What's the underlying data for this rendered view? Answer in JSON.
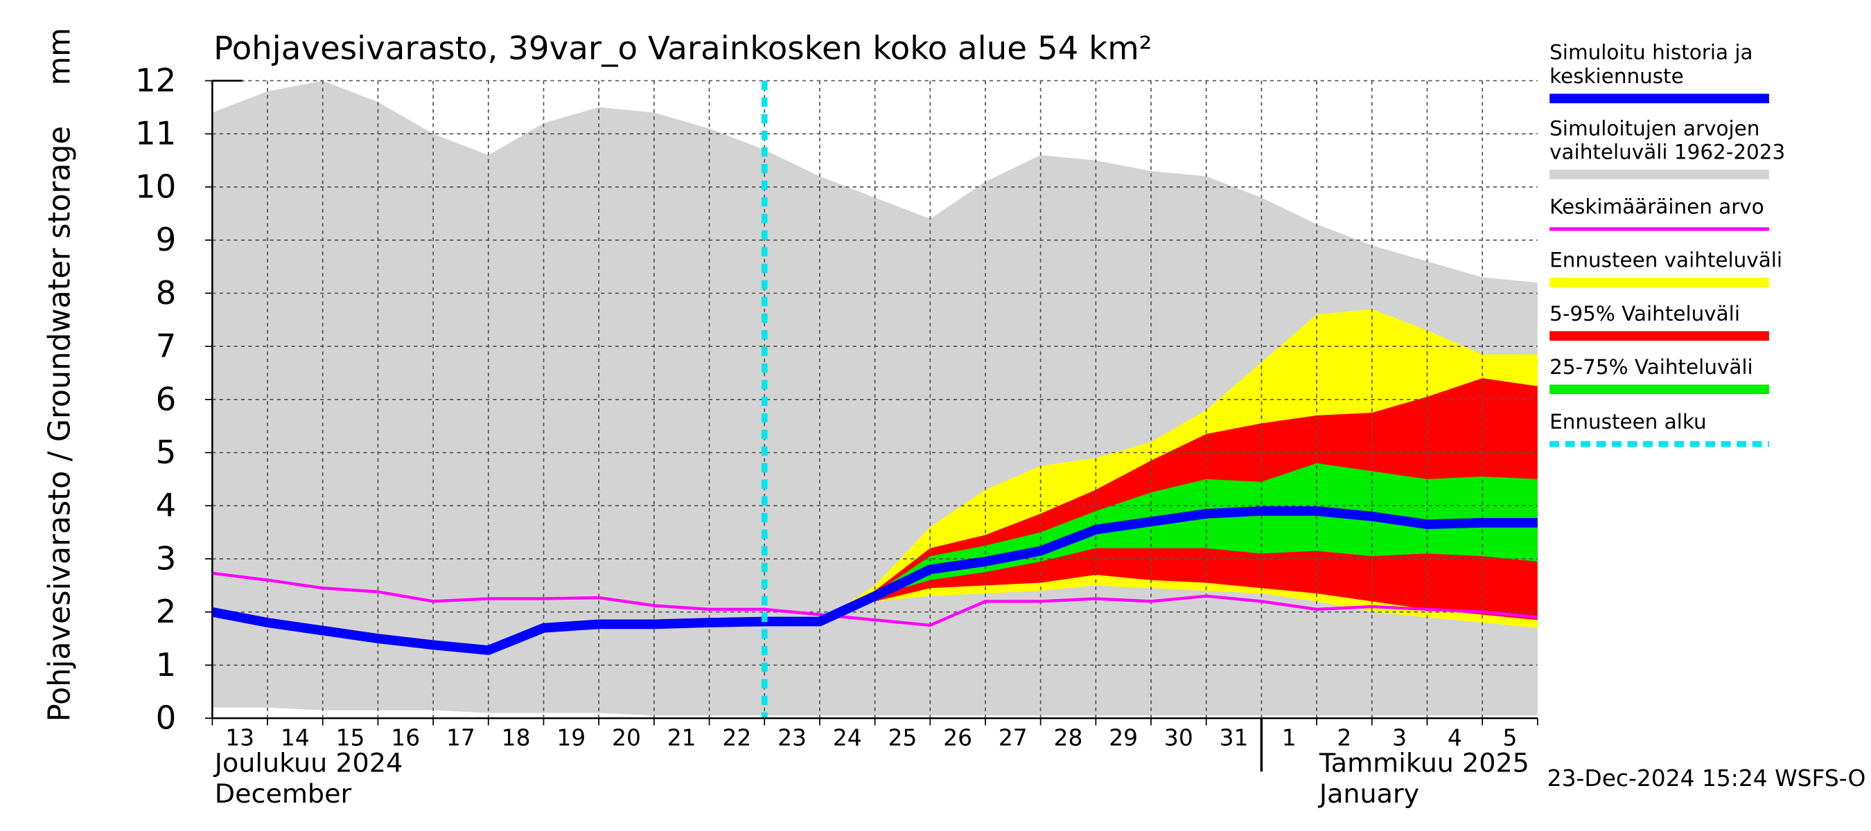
{
  "chart_data": {
    "type": "area-band",
    "title": "Pohjavesivarasto, 39var_o Varainkosken koko alue 54 km²",
    "y_label": "Pohjavesivarasto / Groundwater storage",
    "y_unit": "mm",
    "timestamp": "23-Dec-2024 15:24 WSFS-O",
    "months": [
      {
        "label": "Joulukuu  2024",
        "label_en": "December"
      },
      {
        "label": "Tammikuu  2025",
        "label_en": "January"
      }
    ],
    "categories": [
      "13",
      "14",
      "15",
      "16",
      "17",
      "18",
      "19",
      "20",
      "21",
      "22",
      "23",
      "24",
      "25",
      "26",
      "27",
      "28",
      "29",
      "30",
      "31",
      "1",
      "2",
      "3",
      "4",
      "5",
      null
    ],
    "ylim": [
      0,
      12
    ],
    "yticks": [
      0,
      1,
      2,
      3,
      4,
      5,
      6,
      7,
      8,
      9,
      10,
      11,
      12
    ],
    "grid": true,
    "bands": [
      {
        "name": [
          "Simuloitujen arvojen",
          "vaihteluväli 1962-2023"
        ],
        "color": "#d3d3d3",
        "high": [
          11.4,
          11.8,
          12.0,
          11.6,
          11.0,
          10.6,
          11.2,
          11.5,
          11.4,
          11.1,
          10.7,
          10.2,
          9.8,
          9.4,
          10.1,
          10.6,
          10.5,
          10.3,
          10.2,
          9.8,
          9.3,
          8.9,
          8.6,
          8.3,
          8.2
        ],
        "low": [
          0.2,
          0.2,
          0.15,
          0.15,
          0.15,
          0.1,
          0.1,
          0.1,
          0.05,
          0.05,
          0.05,
          0.05,
          0.05,
          0.05,
          0.05,
          0.05,
          0.05,
          0.05,
          0.05,
          0.05,
          0.05,
          0.05,
          0.05,
          0.05,
          0.05
        ]
      },
      {
        "name": [
          "Ennusteen vaihteluväli"
        ],
        "color": "#ffff00",
        "high": [
          null,
          null,
          null,
          null,
          null,
          null,
          null,
          null,
          null,
          null,
          1.82,
          1.82,
          2.5,
          3.6,
          4.3,
          4.75,
          4.9,
          5.2,
          5.8,
          6.7,
          7.6,
          7.7,
          7.3,
          6.85,
          6.85
        ],
        "low": [
          null,
          null,
          null,
          null,
          null,
          null,
          null,
          null,
          null,
          null,
          1.82,
          1.82,
          2.2,
          2.3,
          2.35,
          2.4,
          2.5,
          2.45,
          2.4,
          2.35,
          2.2,
          2.0,
          1.9,
          1.8,
          1.7
        ]
      },
      {
        "name": [
          "5-95% Vaihteluväli"
        ],
        "color": "#ff0000",
        "high": [
          null,
          null,
          null,
          null,
          null,
          null,
          null,
          null,
          null,
          null,
          1.82,
          1.82,
          2.4,
          3.2,
          3.45,
          3.85,
          4.3,
          4.85,
          5.35,
          5.55,
          5.7,
          5.75,
          6.05,
          6.4,
          6.25
        ],
        "low": [
          null,
          null,
          null,
          null,
          null,
          null,
          null,
          null,
          null,
          null,
          1.82,
          1.82,
          2.2,
          2.45,
          2.5,
          2.55,
          2.7,
          2.6,
          2.55,
          2.45,
          2.35,
          2.2,
          2.05,
          1.95,
          1.85
        ]
      },
      {
        "name": [
          "25-75% Vaihteluväli"
        ],
        "color": "#00ee00",
        "high": [
          null,
          null,
          null,
          null,
          null,
          null,
          null,
          null,
          null,
          null,
          1.82,
          1.82,
          2.35,
          3.05,
          3.25,
          3.5,
          3.9,
          4.25,
          4.5,
          4.45,
          4.8,
          4.65,
          4.5,
          4.55,
          4.5
        ],
        "low": [
          null,
          null,
          null,
          null,
          null,
          null,
          null,
          null,
          null,
          null,
          1.82,
          1.82,
          2.3,
          2.6,
          2.75,
          2.95,
          3.2,
          3.2,
          3.2,
          3.1,
          3.15,
          3.05,
          3.1,
          3.05,
          2.95
        ]
      }
    ],
    "series": [
      {
        "name": [
          "Keskimääräinen arvo"
        ],
        "color": "#ff00ff",
        "width": 2.5,
        "values": [
          2.73,
          2.6,
          2.45,
          2.38,
          2.2,
          2.25,
          2.25,
          2.27,
          2.12,
          2.05,
          2.05,
          1.95,
          1.85,
          1.75,
          2.2,
          2.2,
          2.25,
          2.2,
          2.3,
          2.2,
          2.05,
          2.1,
          2.05,
          2.0,
          1.9
        ]
      },
      {
        "name": [
          "Simuloitu historia ja",
          "keskiennuste"
        ],
        "color": "#0000ff",
        "width": 8,
        "values": [
          2.0,
          1.8,
          1.65,
          1.5,
          1.38,
          1.28,
          1.7,
          1.77,
          1.77,
          1.8,
          1.82,
          1.82,
          2.3,
          2.8,
          2.95,
          3.15,
          3.55,
          3.7,
          3.85,
          3.9,
          3.9,
          3.8,
          3.65,
          3.68,
          3.68
        ]
      }
    ],
    "forecast_start": {
      "name": [
        "Ennusteen alku"
      ],
      "color": "#00e5ee",
      "x": 10
    }
  }
}
